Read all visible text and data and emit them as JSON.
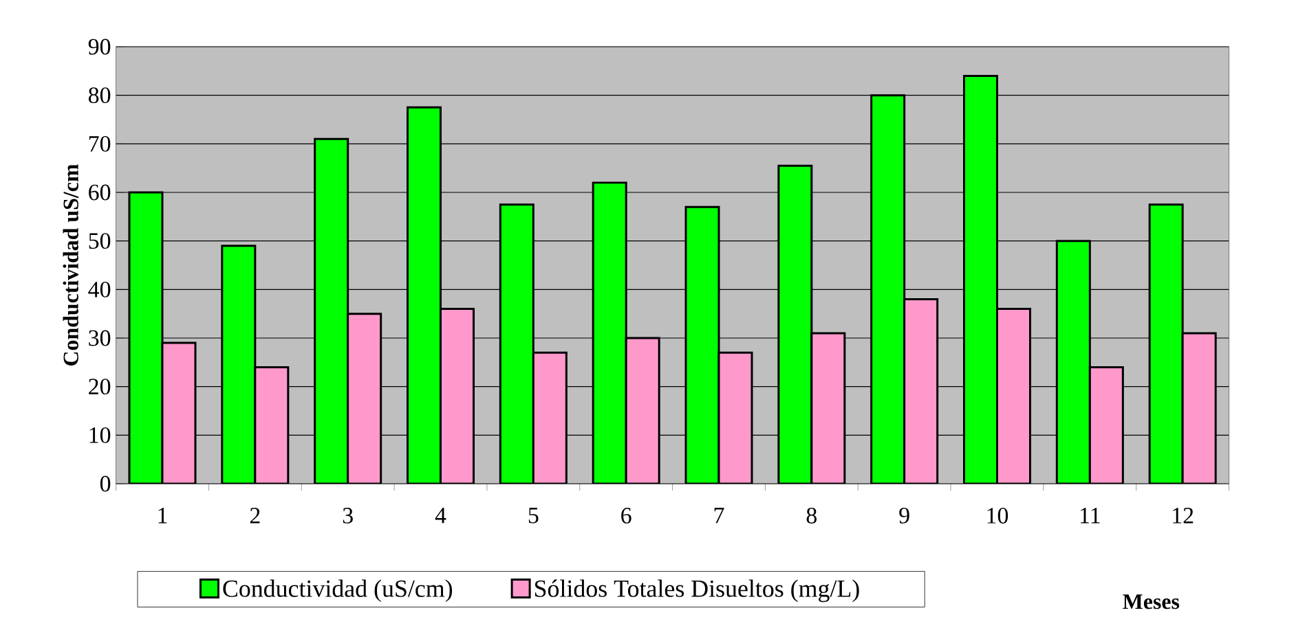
{
  "chart_data": {
    "type": "bar",
    "xlabel": "Meses",
    "ylabel": "Conductividad uS/cm",
    "categories": [
      "1",
      "2",
      "3",
      "4",
      "5",
      "6",
      "7",
      "8",
      "9",
      "10",
      "11",
      "12"
    ],
    "series": [
      {
        "name": "Conductividad (uS/cm)",
        "color": "#00ff00",
        "values": [
          60,
          49,
          71,
          77.5,
          57.5,
          62,
          57,
          65.5,
          80,
          84,
          50,
          57.5
        ]
      },
      {
        "name": "Sólidos Totales Disueltos (mg/L)",
        "color": "#ff99cc",
        "values": [
          29,
          24,
          35,
          36,
          27,
          30,
          27,
          31,
          38,
          36,
          24,
          31
        ]
      }
    ],
    "ylim": [
      0,
      90
    ],
    "yticks": [
      0,
      10,
      20,
      30,
      40,
      50,
      60,
      70,
      80,
      90
    ],
    "grid": "y",
    "legend": "bottom"
  }
}
